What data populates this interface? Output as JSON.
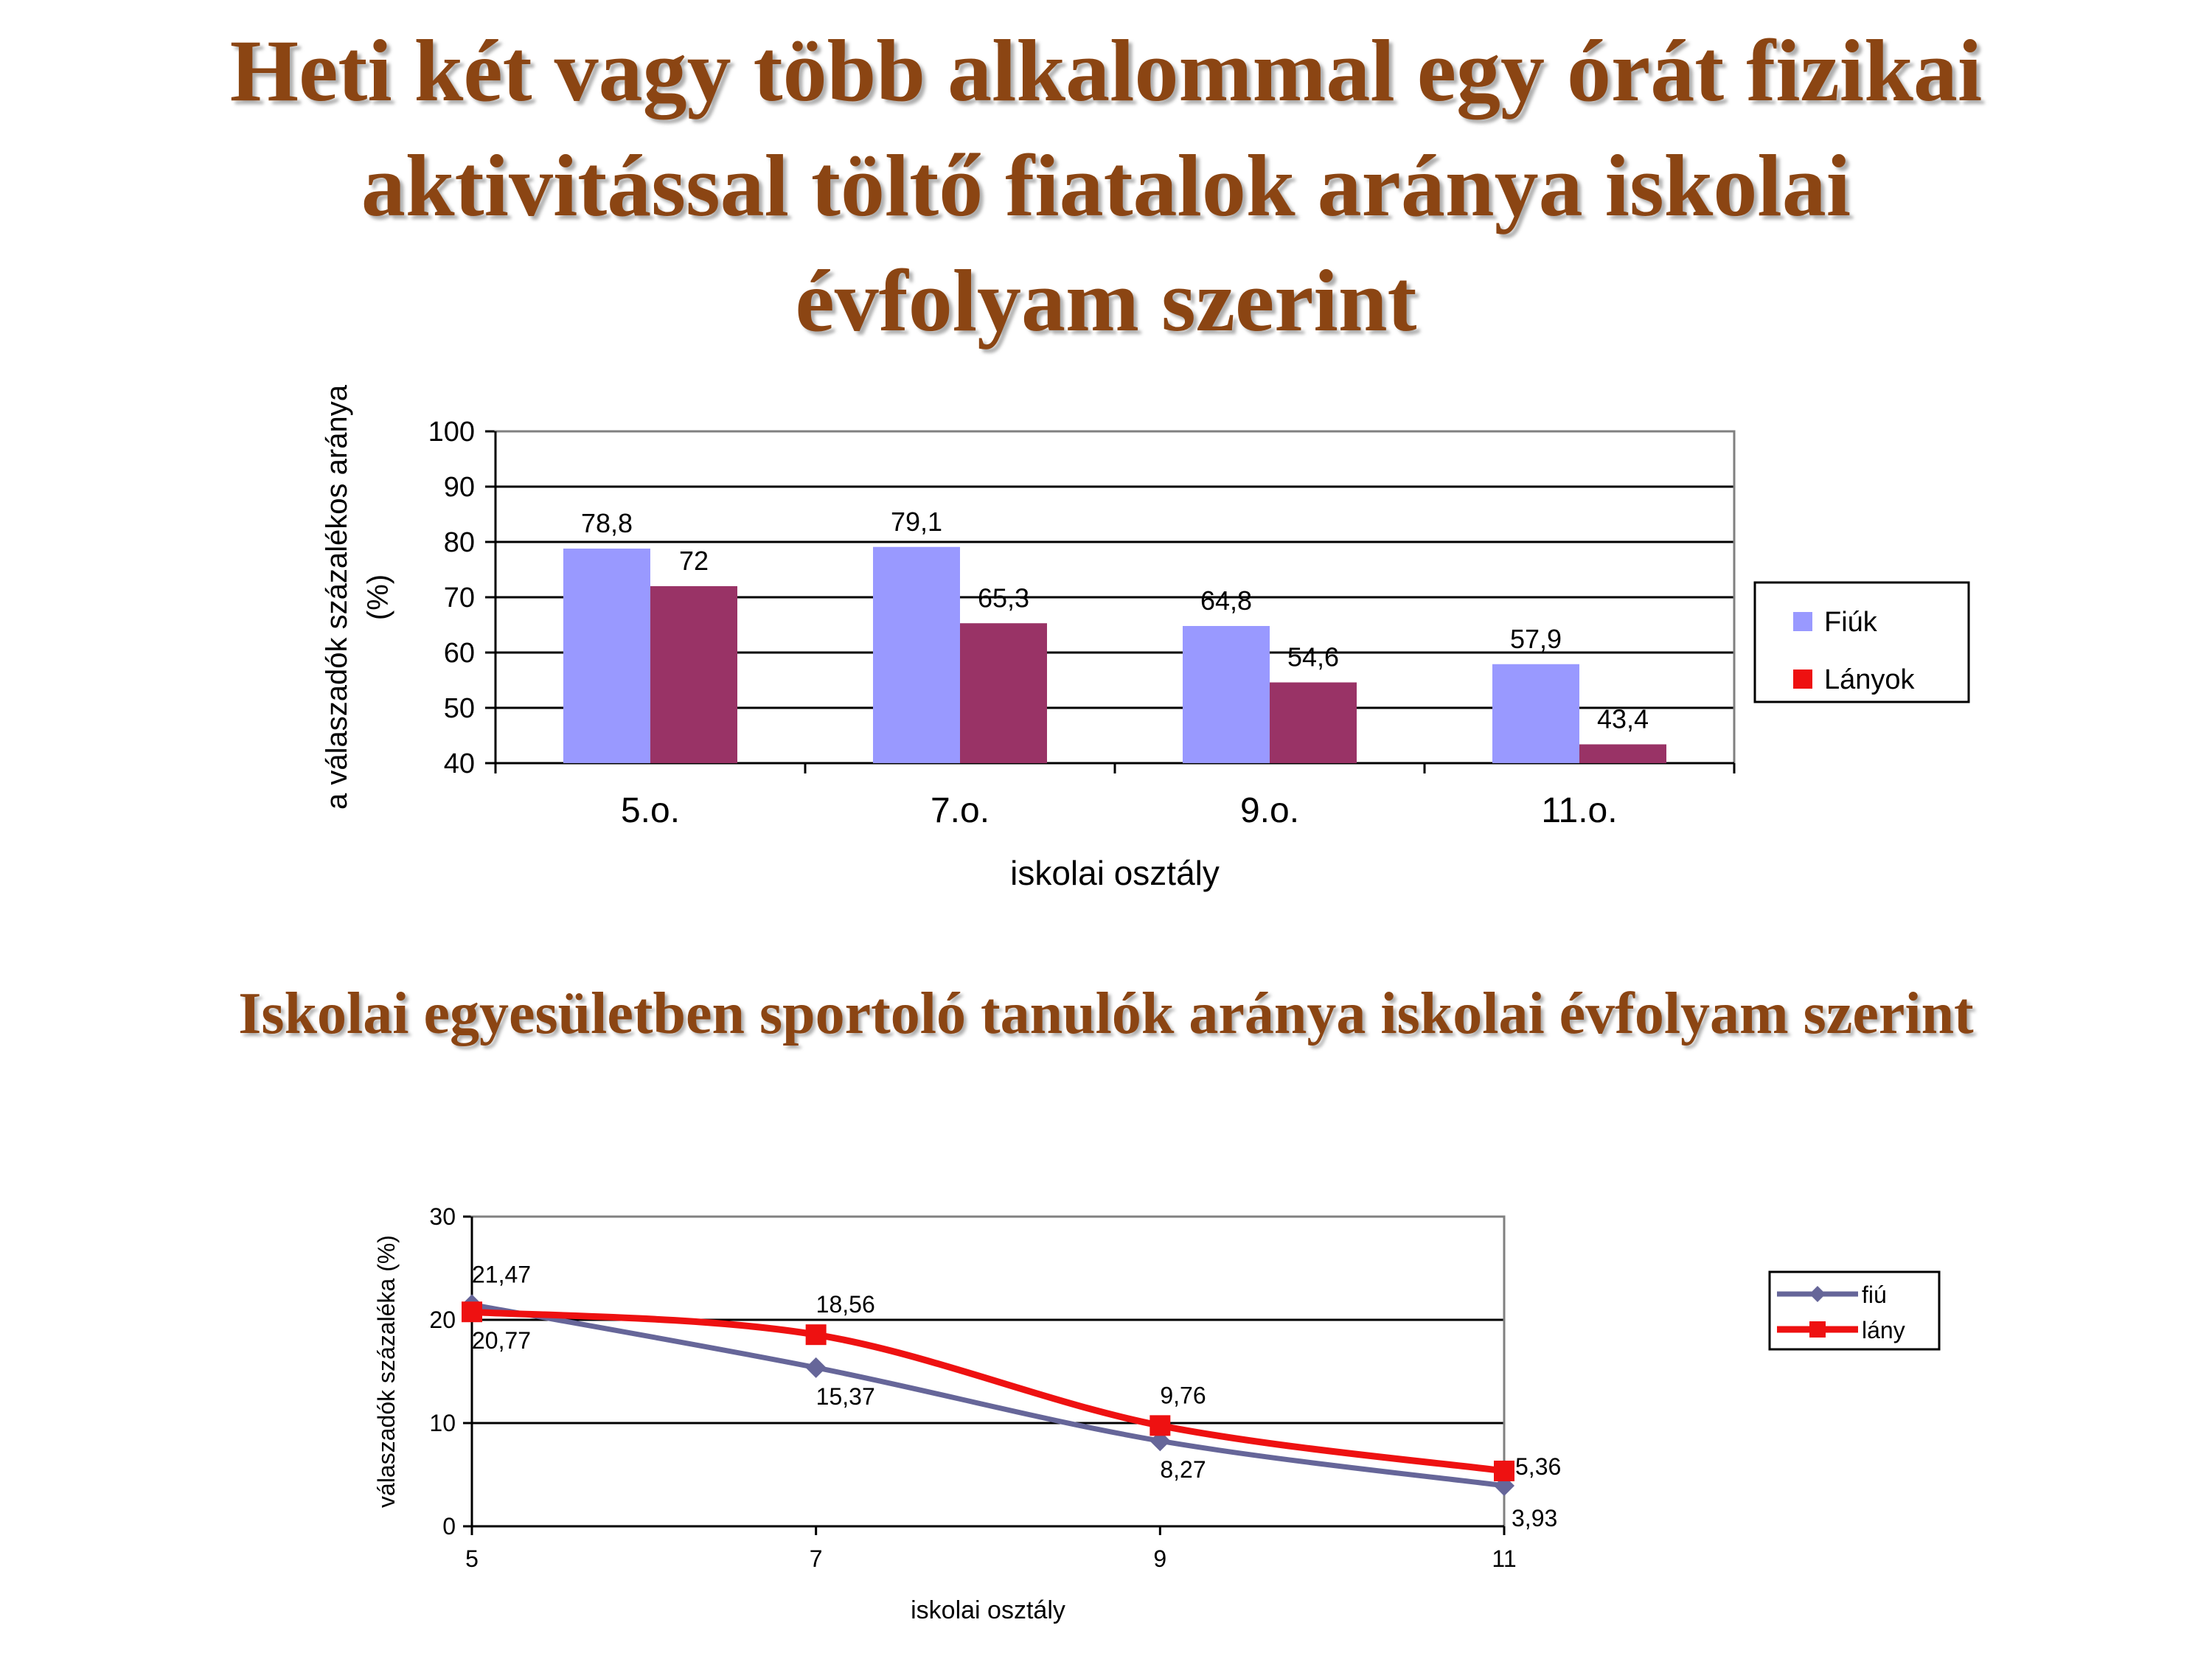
{
  "title_lines": [
    "Heti két vagy több alkalommal egy órát fizikai",
    "aktivitással töltő fiatalok aránya iskolai",
    "évfolyam szerint"
  ],
  "subtitle": "Iskolai egyesületben sportoló tanulók aránya iskolai évfolyam szerint",
  "chart_data": [
    {
      "type": "bar",
      "categories": [
        "5.o.",
        "7.o.",
        "9.o.",
        "11.o."
      ],
      "series": [
        {
          "name": "Fiúk",
          "values": [
            78.8,
            79.1,
            64.8,
            57.9
          ],
          "labels": [
            "78,8",
            "79,1",
            "64,8",
            "57,9"
          ],
          "color": "#9999FF"
        },
        {
          "name": "Lányok",
          "values": [
            72,
            65.3,
            54.6,
            43.4
          ],
          "labels": [
            "72",
            "65,3",
            "54,6",
            "43,4"
          ],
          "color": "#993366",
          "legend_color": "#EE1111"
        }
      ],
      "xlabel": "iskolai osztály",
      "ylabel_lines": [
        "a válaszadók százalékos aránya",
        "(%)"
      ],
      "ylim": [
        40,
        100
      ],
      "yticks": [
        40,
        50,
        60,
        70,
        80,
        90,
        100
      ],
      "grid": true,
      "legend": "right"
    },
    {
      "type": "line",
      "x": [
        5,
        7,
        9,
        11
      ],
      "xticks": [
        "5",
        "7",
        "9",
        "11"
      ],
      "series": [
        {
          "name": "fiú",
          "values": [
            21.47,
            15.37,
            8.27,
            3.93
          ],
          "labels": [
            "21,47",
            "15,37",
            "8,27",
            "3,93"
          ],
          "color": "#666699"
        },
        {
          "name": "lány",
          "values": [
            20.77,
            18.56,
            9.76,
            5.36
          ],
          "labels": [
            "20,77",
            "18,56",
            "9,76",
            "5,36"
          ],
          "color": "#EE1111"
        }
      ],
      "xlabel": "iskolai osztály",
      "ylabel": "válaszadók százaléka (%)",
      "ylim": [
        0,
        30
      ],
      "yticks": [
        0,
        10,
        20,
        30
      ],
      "grid": true,
      "legend": "right"
    }
  ]
}
